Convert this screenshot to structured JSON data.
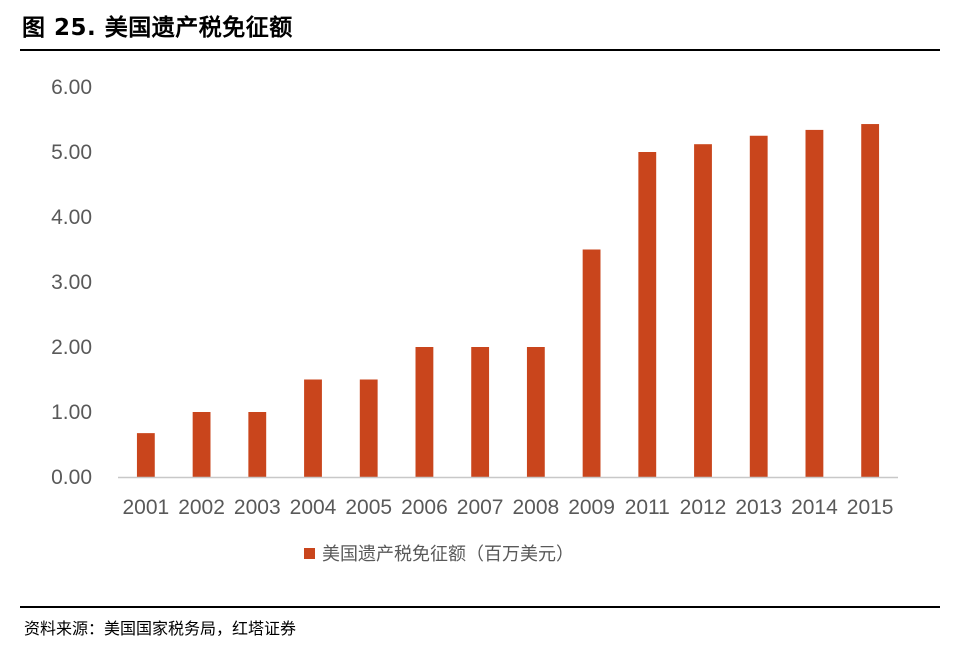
{
  "figure": {
    "title": "图 25. 美国遗产税免征额",
    "source": "资料来源：美国国家税务局，红塔证券"
  },
  "colors": {
    "bar": "#C9451C",
    "axis": "#C8C8C8",
    "text": "#595959",
    "title": "#000000"
  },
  "chart_data": {
    "type": "bar",
    "title": "",
    "xlabel": "",
    "ylabel": "",
    "categories": [
      "2001",
      "2002",
      "2003",
      "2004",
      "2005",
      "2006",
      "2007",
      "2008",
      "2009",
      "2011",
      "2012",
      "2013",
      "2014",
      "2015"
    ],
    "series": [
      {
        "name": "美国遗产税免征额（百万美元）",
        "values": [
          0.675,
          1.0,
          1.0,
          1.5,
          1.5,
          2.0,
          2.0,
          2.0,
          3.5,
          5.0,
          5.12,
          5.25,
          5.34,
          5.43
        ]
      }
    ],
    "ylim": [
      0,
      6
    ],
    "yticks": [
      "0.00",
      "1.00",
      "2.00",
      "3.00",
      "4.00",
      "5.00",
      "6.00"
    ],
    "grid": false,
    "legend": "bottom"
  }
}
